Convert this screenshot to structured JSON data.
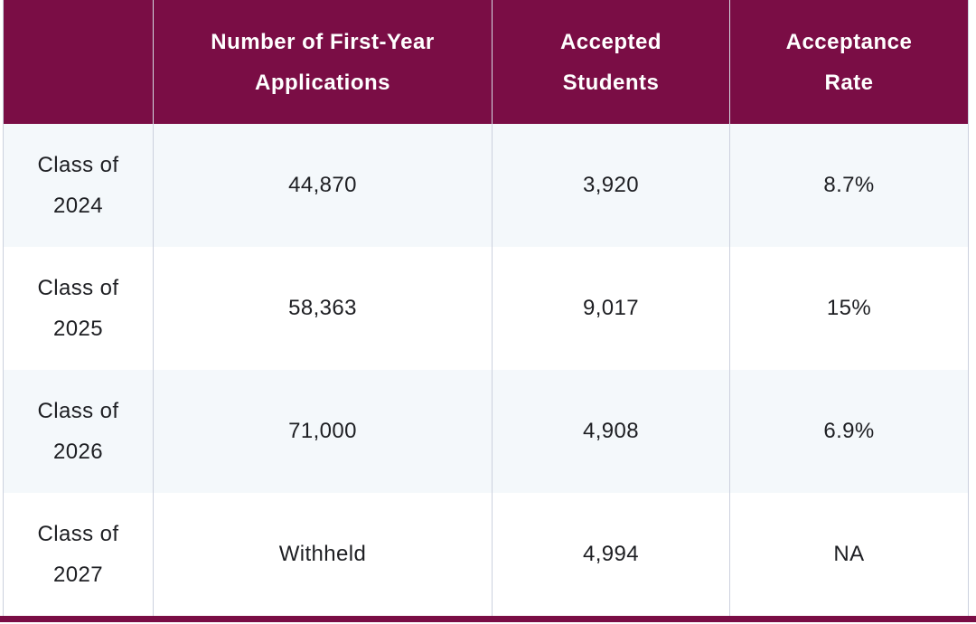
{
  "theme": {
    "header_bg": "#7a0d45",
    "header_text": "#ffffff",
    "row_alt_bg": "#f4f8fb",
    "row_bg": "#ffffff",
    "body_text": "#1e1f23",
    "cell_border": "#ccd1de",
    "bottom_bar": "#7a0d45"
  },
  "table": {
    "header": {
      "empty": "",
      "applications": {
        "line1": "Number of First-Year",
        "line2": "Applications"
      },
      "accepted": {
        "line1": "Accepted",
        "line2": "Students"
      },
      "rate": {
        "line1": "Acceptance",
        "line2": "Rate"
      }
    },
    "rows": [
      {
        "cohort_line1": "Class of",
        "cohort_line2": "2024",
        "applications": "44,870",
        "accepted": "3,920",
        "rate": "8.7%"
      },
      {
        "cohort_line1": "Class of",
        "cohort_line2": "2025",
        "applications": "58,363",
        "accepted": "9,017",
        "rate": "15%"
      },
      {
        "cohort_line1": "Class of",
        "cohort_line2": "2026",
        "applications": "71,000",
        "accepted": "4,908",
        "rate": "6.9%"
      },
      {
        "cohort_line1": "Class of",
        "cohort_line2": "2027",
        "applications": "Withheld",
        "accepted": "4,994",
        "rate": "NA"
      }
    ]
  },
  "chart_data": {
    "type": "table",
    "columns": [
      "",
      "Number of First-Year Applications",
      "Accepted Students",
      "Acceptance Rate"
    ],
    "rows": [
      [
        "Class of 2024",
        "44,870",
        "3,920",
        "8.7%"
      ],
      [
        "Class of 2025",
        "58,363",
        "9,017",
        "15%"
      ],
      [
        "Class of 2026",
        "71,000",
        "4,908",
        "6.9%"
      ],
      [
        "Class of 2027",
        "Withheld",
        "4,994",
        "NA"
      ]
    ]
  }
}
